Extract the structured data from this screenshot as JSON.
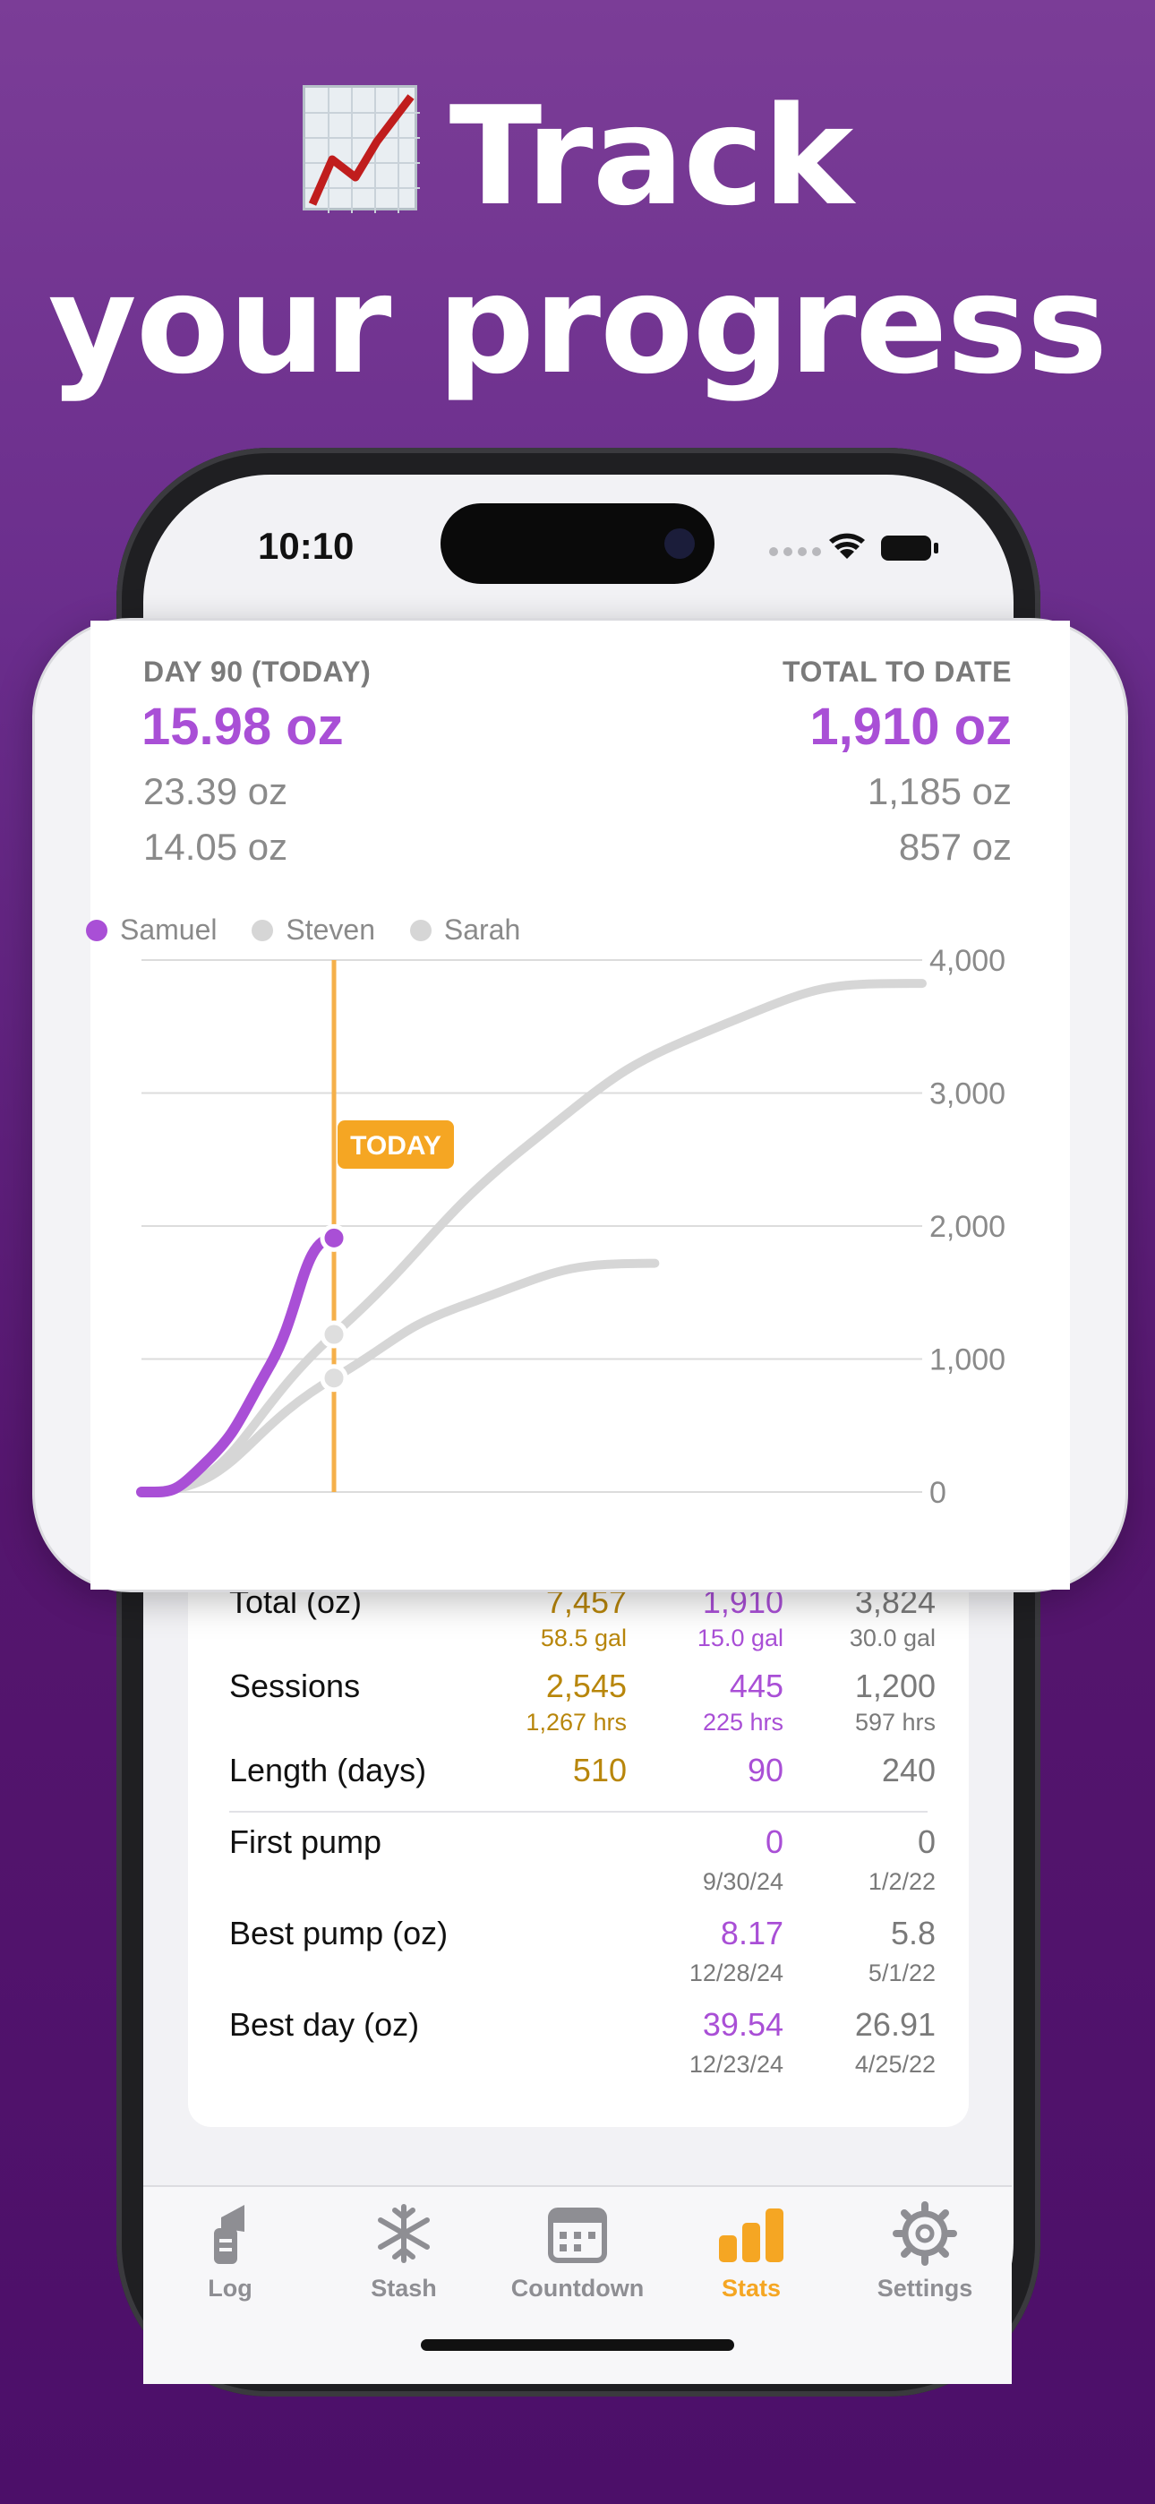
{
  "headline": {
    "line1": "Track",
    "line2": "your progress"
  },
  "status_bar": {
    "time": "10:10"
  },
  "chart_card": {
    "left_header": "DAY 90 (TODAY)",
    "left_primary": "15.98 oz",
    "left_secondary": "23.39 oz",
    "left_tertiary": "14.05 oz",
    "right_header": "TOTAL TO DATE",
    "right_primary": "1,910 oz",
    "right_secondary": "1,185 oz",
    "right_tertiary": "857 oz",
    "today_label": "TODAY"
  },
  "chart_data": {
    "type": "line",
    "legend": [
      "Samuel",
      "Steven",
      "Sarah"
    ],
    "legend_position": "top-left",
    "series": [
      {
        "name": "Samuel",
        "color": "#a94fd6",
        "points": [
          [
            0,
            0
          ],
          [
            30,
            220
          ],
          [
            60,
            950
          ],
          [
            90,
            1910
          ]
        ]
      },
      {
        "name": "Steven",
        "color": "#d6d6d6",
        "points": [
          [
            0,
            0
          ],
          [
            90,
            1185
          ],
          [
            180,
            2600
          ],
          [
            270,
            3500
          ],
          [
            365,
            3824
          ]
        ]
      },
      {
        "name": "Sarah",
        "color": "#d6d6d6",
        "points": [
          [
            0,
            0
          ],
          [
            90,
            857
          ],
          [
            150,
            1400
          ],
          [
            240,
            1720
          ]
        ]
      }
    ],
    "y_ticks": [
      "0",
      "1,000",
      "2,000",
      "3,000",
      "4,000"
    ],
    "ylim": [
      0,
      4000
    ],
    "xlim": [
      0,
      365
    ],
    "today_x": 90,
    "grid": true
  },
  "stats": {
    "rows": [
      {
        "label": "Total (oz)",
        "v1": "7,457",
        "s1": "58.5 gal",
        "v2": "1,910",
        "s2": "15.0 gal",
        "v3": "3,824",
        "s3": "30.0 gal"
      },
      {
        "label": "Sessions",
        "v1": "2,545",
        "s1": "1,267 hrs",
        "v2": "445",
        "s2": "225 hrs",
        "v3": "1,200",
        "s3": "597 hrs"
      },
      {
        "label": "Length (days)",
        "v1": "510",
        "v2": "90",
        "v3": "240"
      },
      {
        "label": "First pump",
        "v2": "0",
        "s2": "9/30/24",
        "v3": "0",
        "s3": "1/2/22"
      },
      {
        "label": "Best pump (oz)",
        "v2": "8.17",
        "s2": "12/28/24",
        "v3": "5.8",
        "s3": "5/1/22"
      },
      {
        "label": "Best day (oz)",
        "v2": "39.54",
        "s2": "12/23/24",
        "v3": "26.91",
        "s3": "4/25/22"
      }
    ]
  },
  "tabs": [
    {
      "label": "Log",
      "icon": "pump-icon"
    },
    {
      "label": "Stash",
      "icon": "snowflake-icon"
    },
    {
      "label": "Countdown",
      "icon": "calendar-icon"
    },
    {
      "label": "Stats",
      "icon": "bar-chart-icon",
      "active": true
    },
    {
      "label": "Settings",
      "icon": "gear-icon"
    }
  ],
  "colors": {
    "accent": "#a94fd6",
    "gold": "#b8860b",
    "active_tab": "#f5a623",
    "background": "#55166e"
  }
}
